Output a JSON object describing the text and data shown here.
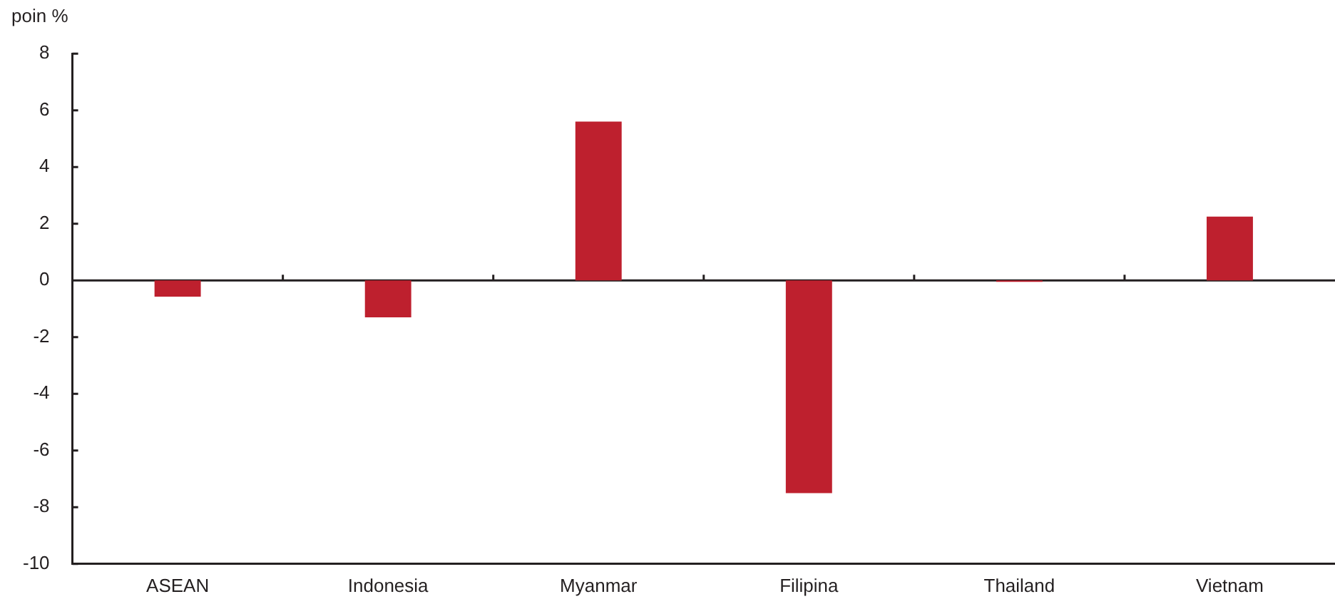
{
  "chart_data": {
    "type": "bar",
    "ylabel": "poin %",
    "categories": [
      "ASEAN",
      "Indonesia",
      "Myanmar",
      "Filipina",
      "Thailand",
      "Vietnam"
    ],
    "values": [
      -0.57,
      -1.3,
      5.6,
      -7.5,
      -0.05,
      2.25
    ],
    "color": "#be202e",
    "ylim": [
      -10,
      8
    ],
    "yticks": [
      -10,
      -8,
      -6,
      -4,
      -2,
      0,
      2,
      4,
      6,
      8
    ],
    "legend": false
  }
}
